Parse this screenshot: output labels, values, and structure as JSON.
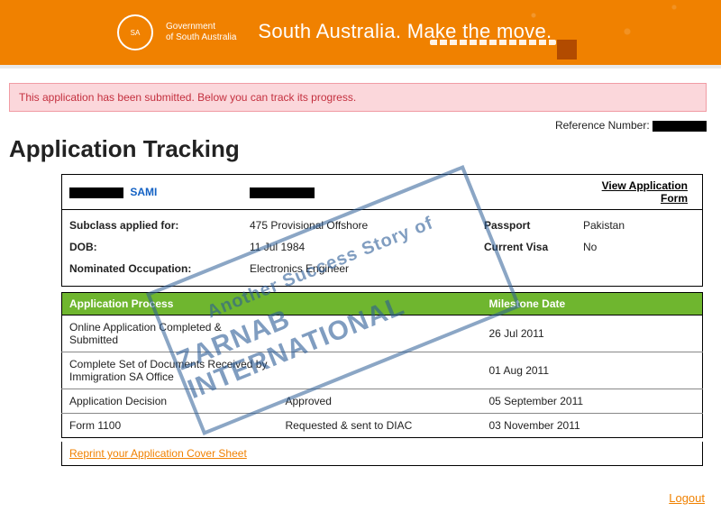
{
  "header": {
    "org_line1": "Government",
    "org_line2": "of South Australia",
    "tagline": "South Australia. Make the move."
  },
  "alert": {
    "text": "This application has been submitted. Below you can track its progress."
  },
  "reference": {
    "label": "Reference Number:"
  },
  "page": {
    "title": "Application Tracking"
  },
  "applicant": {
    "name_visible": "SAMI",
    "view_form_label": "View Application Form"
  },
  "details": {
    "subclass_label": "Subclass applied for:",
    "subclass_value": "475 Provisional Offshore",
    "passport_label": "Passport",
    "passport_value": "Pakistan",
    "dob_label": "DOB:",
    "dob_value": "11 Jul 1984",
    "visa_label": "Current Visa",
    "visa_value": "No",
    "occupation_label": "Nominated Occupation:",
    "occupation_value": "Electronics Engineer"
  },
  "process": {
    "col1": "Application Process",
    "col2": "",
    "col3": "Milestone Date",
    "rows": [
      {
        "step": "Online Application Completed & Submitted",
        "status": "",
        "date": "26 Jul 2011"
      },
      {
        "step": "Complete Set of Documents Received by Immigration SA Office",
        "status": "",
        "date": "01 Aug 2011"
      },
      {
        "step": "Application Decision",
        "status": "Approved",
        "date": "05 September 2011"
      },
      {
        "step": "Form 1100",
        "status": "Requested & sent to DIAC",
        "date": "03 November 2011"
      }
    ]
  },
  "reprint": {
    "label": "Reprint your Application Cover Sheet"
  },
  "logout": {
    "label": "Logout"
  },
  "stamp": {
    "line1": "Another Success Story of",
    "line2": "ZARNAB INTERNATIONAL"
  },
  "colors": {
    "header_bg": "#f08100",
    "alert_bg": "#fbd7db",
    "alert_border": "#f19ca4",
    "alert_text": "#c4303f",
    "table_header_bg": "#6fb62f",
    "link_orange": "#f08100",
    "stamp_color": "rgba(44,92,150,0.6)"
  }
}
